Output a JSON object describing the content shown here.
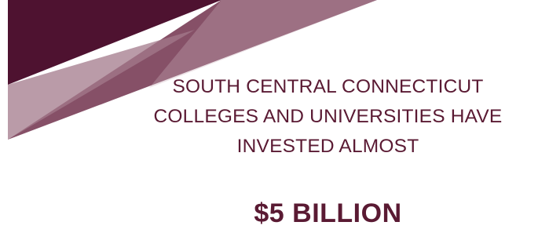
{
  "colors": {
    "maroon_dark": "#4e1230",
    "maroon_mid": "#6b2a45",
    "maroon_light": "#a37a8b",
    "maroon_pale": "#c9adb8",
    "text": "#5a1a33"
  },
  "headline": {
    "line1": "SOUTH CENTRAL CONNECTICUT",
    "line2": "COLLEGES AND UNIVERSITIES HAVE",
    "line3": "INVESTED ALMOST"
  },
  "amount": "$5 BILLION"
}
